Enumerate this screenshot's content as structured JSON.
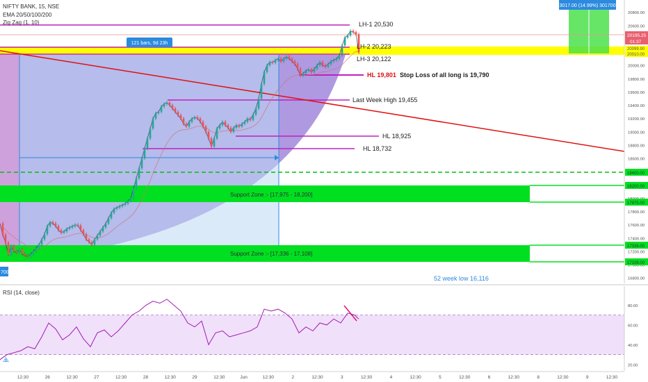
{
  "header": {
    "symbol": "NIFTY BANK, 15, NSE",
    "indicator_ema": "EMA 20/50/100/200",
    "indicator_zigzag": "Zig Zag (1, 10)"
  },
  "rsi_label": "RSI (14, close)",
  "measure_box": {
    "text": "121 bars, 9d 23h"
  },
  "target_box": {
    "text": "3017.00 (14.99%) 301700"
  },
  "bottom_left_tag": "700",
  "colors": {
    "purple_line": "#c020c0",
    "yellow_zone": "#ffff00",
    "green_zone": "#00e020",
    "red_line": "#e01010",
    "shaded_fill": "#9b7fd9",
    "price_line": "#2f2f4f",
    "rsi_line": "#a01ab0",
    "rsi_band": "#f0e0fa",
    "blue_box": "#2c8adf"
  },
  "annotations": {
    "lh1": "LH-1  20,530",
    "lh2": "LH-2  20,223",
    "lh3": "LH-3  20,122",
    "hl_red": "HL 19,801",
    "stop_loss": "Stop Loss of all long is 19,790",
    "last_week_high": "Last Week High  19,455",
    "hl_18925": "HL  18,925",
    "hl_18732": "HL  18,732",
    "support_zone_1": "Support Zone :- [17,975 - 18,200]",
    "support_zone_2": "Support Zone :- [17,336 - 17,108]",
    "week52_low": "52 week  low 16,116"
  },
  "price_tags": {
    "current": "20195.25",
    "timer": "01:37",
    "yellow_a": "20099.90",
    "yellow_b": "20010.00",
    "dashed": "18400.00",
    "green_a": "18200.00",
    "green_b": "17975.00",
    "green_c": "17336.00",
    "green_d": "17108.00"
  },
  "chart_data": {
    "type": "candlestick",
    "x_ticks": [
      "12:30",
      "26",
      "12:30",
      "27",
      "12:30",
      "28",
      "12:30",
      "29",
      "12:30",
      "Jun",
      "12:30",
      "2",
      "12:30",
      "3",
      "12:30",
      "4",
      "12:30",
      "5",
      "12:30",
      "6",
      "12:30",
      "8",
      "12:30",
      "9",
      "12:30"
    ],
    "y_ticks": [
      "20800.00",
      "20600.00",
      "20400.00",
      "20200.00",
      "20000.00",
      "19800.00",
      "19600.00",
      "19400.00",
      "19200.00",
      "19000.00",
      "18800.00",
      "18600.00",
      "18400.00",
      "18200.00",
      "18000.00",
      "17800.00",
      "17600.00",
      "17400.00",
      "17200.00",
      "17000.00",
      "16800.00"
    ],
    "ylim": [
      16760,
      20880
    ],
    "rsi_ticks": [
      "80.00",
      "60.00",
      "40.00",
      "20.00"
    ],
    "rsi_ylim": [
      15,
      88
    ],
    "rsi_band": [
      30,
      70
    ],
    "levels": {
      "lh1": 20530,
      "lh2": 20223,
      "lh3": 20122,
      "hl": 19801,
      "stop_loss": 19790,
      "last_week_high": 19455,
      "hl_2": 18925,
      "hl_3": 18732,
      "support_zone_1": [
        17975,
        18200
      ],
      "support_zone_2": [
        17108,
        17336
      ],
      "week52_low": 16116
    },
    "price_path": [
      [
        0,
        17620
      ],
      [
        4,
        17450
      ],
      [
        8,
        17330
      ],
      [
        12,
        17150
      ],
      [
        16,
        17280
      ],
      [
        20,
        17200
      ],
      [
        24,
        17180
      ],
      [
        28,
        17230
      ],
      [
        32,
        17160
      ],
      [
        36,
        17140
      ],
      [
        40,
        17120
      ],
      [
        44,
        17160
      ],
      [
        48,
        17200
      ],
      [
        52,
        17250
      ],
      [
        56,
        17300
      ],
      [
        60,
        17380
      ],
      [
        64,
        17460
      ],
      [
        68,
        17580
      ],
      [
        72,
        17640
      ],
      [
        76,
        17620
      ],
      [
        80,
        17580
      ],
      [
        84,
        17520
      ],
      [
        88,
        17480
      ],
      [
        92,
        17500
      ],
      [
        96,
        17540
      ],
      [
        100,
        17560
      ],
      [
        104,
        17580
      ],
      [
        108,
        17600
      ],
      [
        112,
        17590
      ],
      [
        116,
        17520
      ],
      [
        120,
        17460
      ],
      [
        124,
        17380
      ],
      [
        128,
        17340
      ],
      [
        132,
        17300
      ],
      [
        136,
        17380
      ],
      [
        140,
        17440
      ],
      [
        144,
        17500
      ],
      [
        148,
        17560
      ],
      [
        152,
        17620
      ],
      [
        156,
        17700
      ],
      [
        160,
        17780
      ],
      [
        164,
        17840
      ],
      [
        168,
        17860
      ],
      [
        172,
        17880
      ],
      [
        176,
        17900
      ],
      [
        180,
        17920
      ],
      [
        184,
        17960
      ],
      [
        188,
        18000
      ],
      [
        192,
        18150
      ],
      [
        196,
        18300
      ],
      [
        200,
        18450
      ],
      [
        204,
        18600
      ],
      [
        208,
        18750
      ],
      [
        212,
        18900
      ],
      [
        216,
        19050
      ],
      [
        220,
        19200
      ],
      [
        224,
        19280
      ],
      [
        228,
        19300
      ],
      [
        232,
        19380
      ],
      [
        236,
        19420
      ],
      [
        240,
        19440
      ],
      [
        244,
        19400
      ],
      [
        248,
        19350
      ],
      [
        252,
        19300
      ],
      [
        256,
        19250
      ],
      [
        260,
        19200
      ],
      [
        264,
        19120
      ],
      [
        268,
        19080
      ],
      [
        272,
        19150
      ],
      [
        276,
        19200
      ],
      [
        280,
        19220
      ],
      [
        284,
        19200
      ],
      [
        288,
        19150
      ],
      [
        292,
        19080
      ],
      [
        296,
        19000
      ],
      [
        300,
        18900
      ],
      [
        304,
        18780
      ],
      [
        308,
        18900
      ],
      [
        312,
        19050
      ],
      [
        316,
        19100
      ],
      [
        320,
        19150
      ],
      [
        324,
        19100
      ],
      [
        328,
        19060
      ],
      [
        332,
        19000
      ],
      [
        336,
        19060
      ],
      [
        340,
        19100
      ],
      [
        344,
        19080
      ],
      [
        348,
        19120
      ],
      [
        352,
        19150
      ],
      [
        356,
        19200
      ],
      [
        360,
        19180
      ],
      [
        364,
        19260
      ],
      [
        368,
        19350
      ],
      [
        372,
        19500
      ],
      [
        376,
        19720
      ],
      [
        380,
        19900
      ],
      [
        384,
        20000
      ],
      [
        388,
        20050
      ],
      [
        392,
        20040
      ],
      [
        396,
        20080
      ],
      [
        400,
        20100
      ],
      [
        404,
        20060
      ],
      [
        408,
        20100
      ],
      [
        412,
        20130
      ],
      [
        416,
        20100
      ],
      [
        420,
        20060
      ],
      [
        424,
        20020
      ],
      [
        428,
        19950
      ],
      [
        432,
        19850
      ],
      [
        436,
        19880
      ],
      [
        440,
        19920
      ],
      [
        444,
        19940
      ],
      [
        448,
        19900
      ],
      [
        452,
        19950
      ],
      [
        456,
        20000
      ],
      [
        460,
        20050
      ],
      [
        464,
        20000
      ],
      [
        468,
        19980
      ],
      [
        472,
        20020
      ],
      [
        476,
        20060
      ],
      [
        480,
        20080
      ],
      [
        484,
        20100
      ],
      [
        488,
        20150
      ],
      [
        492,
        20300
      ],
      [
        496,
        20420
      ],
      [
        500,
        20450
      ],
      [
        504,
        20520
      ],
      [
        508,
        20500
      ],
      [
        512,
        20470
      ],
      [
        516,
        20195
      ]
    ],
    "rsi_path": [
      [
        0,
        25
      ],
      [
        10,
        30
      ],
      [
        20,
        32
      ],
      [
        30,
        34
      ],
      [
        40,
        38
      ],
      [
        50,
        36
      ],
      [
        60,
        48
      ],
      [
        70,
        62
      ],
      [
        80,
        56
      ],
      [
        90,
        45
      ],
      [
        100,
        50
      ],
      [
        110,
        58
      ],
      [
        120,
        46
      ],
      [
        130,
        38
      ],
      [
        140,
        52
      ],
      [
        150,
        55
      ],
      [
        160,
        48
      ],
      [
        170,
        54
      ],
      [
        180,
        62
      ],
      [
        190,
        70
      ],
      [
        200,
        74
      ],
      [
        210,
        80
      ],
      [
        220,
        84
      ],
      [
        230,
        82
      ],
      [
        240,
        86
      ],
      [
        250,
        80
      ],
      [
        260,
        74
      ],
      [
        270,
        62
      ],
      [
        280,
        58
      ],
      [
        290,
        64
      ],
      [
        300,
        40
      ],
      [
        310,
        52
      ],
      [
        320,
        54
      ],
      [
        330,
        48
      ],
      [
        340,
        50
      ],
      [
        350,
        52
      ],
      [
        360,
        54
      ],
      [
        370,
        58
      ],
      [
        380,
        76
      ],
      [
        390,
        74
      ],
      [
        400,
        76
      ],
      [
        410,
        72
      ],
      [
        420,
        66
      ],
      [
        430,
        52
      ],
      [
        440,
        58
      ],
      [
        450,
        54
      ],
      [
        460,
        62
      ],
      [
        470,
        60
      ],
      [
        480,
        66
      ],
      [
        490,
        62
      ],
      [
        500,
        72
      ],
      [
        510,
        70
      ],
      [
        516,
        66
      ]
    ]
  }
}
